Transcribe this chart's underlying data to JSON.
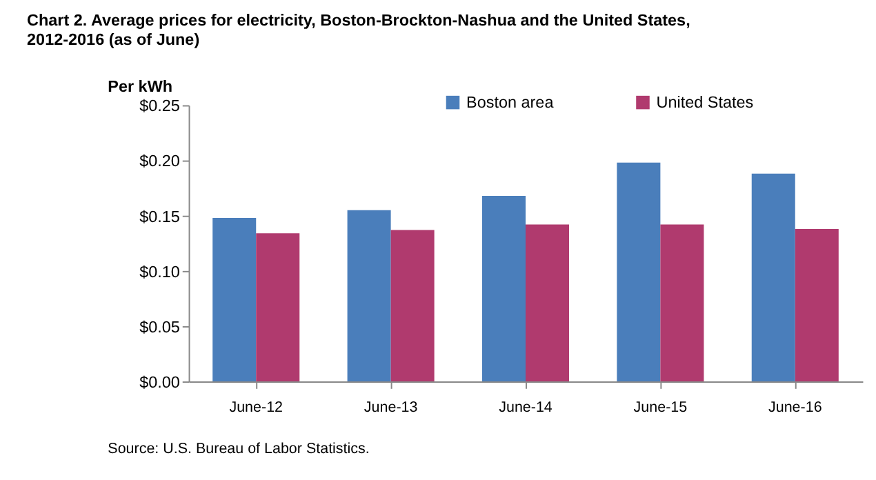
{
  "chart_data": {
    "type": "bar",
    "title": "Chart 2. Average prices for electricity, Boston-Brockton-Nashua  and the United  States, 2012-2016 (as of June)",
    "ylabel": "Per kWh",
    "categories": [
      "June-12",
      "June-13",
      "June-14",
      "June-15",
      "June-16"
    ],
    "series": [
      {
        "name": "Boston area",
        "color": "#4a7ebb",
        "values": [
          0.148,
          0.155,
          0.168,
          0.198,
          0.188
        ]
      },
      {
        "name": "United States",
        "color": "#b03a6e",
        "values": [
          0.134,
          0.137,
          0.142,
          0.142,
          0.138
        ]
      }
    ],
    "ylim": [
      0,
      0.25
    ],
    "yticks": [
      {
        "value": 0,
        "label": "$0.00"
      },
      {
        "value": 0.05,
        "label": "$0.05"
      },
      {
        "value": 0.1,
        "label": "$0.10"
      },
      {
        "value": 0.15,
        "label": "$0.15"
      },
      {
        "value": 0.2,
        "label": "$0.20"
      },
      {
        "value": 0.25,
        "label": "$0.25"
      }
    ],
    "grid": false,
    "legend": "top",
    "annotations": [
      "Source: U.S. Bureau of Labor Statistics."
    ]
  }
}
